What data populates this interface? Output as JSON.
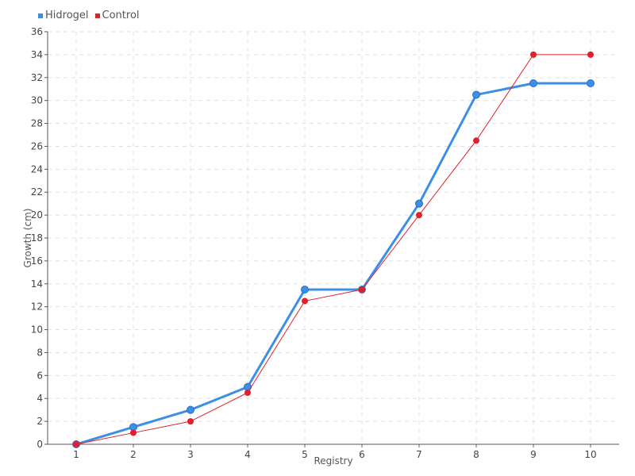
{
  "chart_data": {
    "type": "line",
    "x": [
      1,
      2,
      3,
      4,
      5,
      6,
      7,
      8,
      9,
      10
    ],
    "xlabel": "Registry",
    "ylabel": "Growth (cm)",
    "ylim": [
      0,
      36
    ],
    "ytick_step": 2,
    "grid": true,
    "legend_position": "top-left",
    "series": [
      {
        "name": "Hidrogel",
        "color": "#3b8fe8",
        "values": [
          0,
          1.5,
          3,
          5,
          13.5,
          13.5,
          21,
          30.5,
          31.5,
          31.5
        ]
      },
      {
        "name": "Control",
        "color": "#e0202a",
        "values": [
          0,
          1,
          2,
          4.5,
          12.5,
          13.5,
          20,
          26.5,
          34,
          34
        ]
      }
    ]
  }
}
